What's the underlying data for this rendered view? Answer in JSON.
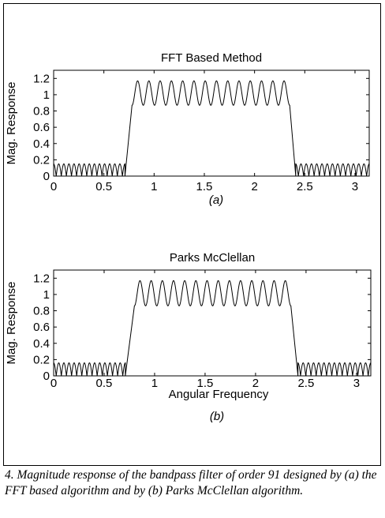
{
  "chart_data": [
    {
      "type": "line",
      "panel": "(a)",
      "title": "FFT Based Method",
      "xlabel": "",
      "ylabel": "Mag. Response",
      "xlim": [
        0,
        3.1416
      ],
      "ylim": [
        0,
        1.3
      ],
      "xticks": [
        "0",
        "0.5",
        "1",
        "1.5",
        "2",
        "2.5",
        "3"
      ],
      "yticks": [
        "0",
        "0.2",
        "0.4",
        "0.6",
        "0.8",
        "1",
        "1.2"
      ],
      "grid": false,
      "series": [
        {
          "stopband_low": {
            "x_start": 0.0,
            "x_end": 0.71,
            "min": 0.0,
            "max": 0.15,
            "ripples": 14
          },
          "transition_up": {
            "x_start": 0.71,
            "x_end": 0.78
          },
          "passband": {
            "x_start": 0.78,
            "x_end": 2.35,
            "min": 0.87,
            "max": 1.17,
            "ripples": 14
          },
          "transition_down": {
            "x_start": 2.35,
            "x_end": 2.41
          },
          "stopband_high": {
            "x_start": 2.41,
            "x_end": 3.1416,
            "min": 0.0,
            "max": 0.15,
            "ripples": 14
          }
        }
      ]
    },
    {
      "type": "line",
      "panel": "(b)",
      "title": "Parks McClellan",
      "xlabel": "Angular Frequency",
      "ylabel": "Mag. Response",
      "xlim": [
        0,
        3.1416
      ],
      "ylim": [
        0,
        1.3
      ],
      "xticks": [
        "0",
        "0.5",
        "1",
        "1.5",
        "2",
        "2.5",
        "3"
      ],
      "yticks": [
        "0",
        "0.2",
        "0.4",
        "0.6",
        "0.8",
        "1",
        "1.2"
      ],
      "grid": false,
      "series": [
        {
          "stopband_low": {
            "x_start": 0.0,
            "x_end": 0.71,
            "min": 0.0,
            "max": 0.16,
            "ripples": 14
          },
          "transition_up": {
            "x_start": 0.71,
            "x_end": 0.8
          },
          "passband": {
            "x_start": 0.8,
            "x_end": 2.35,
            "min": 0.86,
            "max": 1.17,
            "ripples": 14
          },
          "transition_down": {
            "x_start": 2.35,
            "x_end": 2.42
          },
          "stopband_high": {
            "x_start": 2.42,
            "x_end": 3.1416,
            "min": 0.0,
            "max": 0.16,
            "ripples": 14
          }
        }
      ]
    }
  ],
  "figure": {
    "caption": "4. Magnitude response of the bandpass filter of order 91 designed by (a) the FFT based algorithm and by (b) Parks McClellan algorithm."
  }
}
